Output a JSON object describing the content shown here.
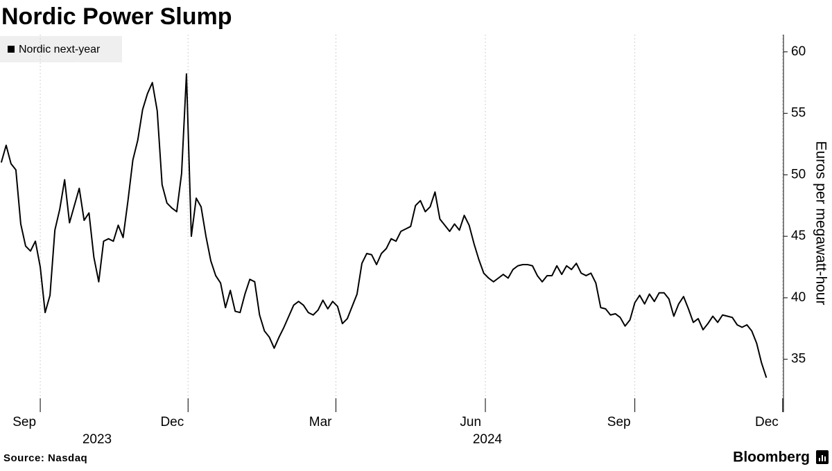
{
  "chart_data": {
    "type": "line",
    "title": "Nordic Power Slump",
    "source": "Source: Nasdaq",
    "brand": "Bloomberg",
    "y_axis_label": "Euros per megawatt-hour",
    "year_labels": [
      "2023",
      "2024"
    ],
    "series": [
      {
        "name": "Nordic next-year",
        "color": "#000000",
        "values": [
          51.0,
          52.4,
          50.9,
          50.4,
          46.0,
          44.2,
          43.8,
          44.6,
          42.5,
          38.8,
          40.2,
          45.5,
          47.2,
          49.6,
          46.1,
          47.5,
          48.9,
          46.3,
          46.9,
          43.3,
          41.3,
          44.6,
          44.8,
          44.6,
          45.9,
          44.9,
          47.9,
          51.2,
          52.8,
          55.3,
          56.6,
          57.5,
          55.2,
          49.2,
          47.7,
          47.3,
          47.0,
          50.1,
          58.2,
          45.0,
          48.1,
          47.4,
          45.0,
          43.0,
          41.8,
          41.2,
          39.2,
          40.6,
          38.9,
          38.8,
          40.3,
          41.5,
          41.3,
          38.6,
          37.3,
          36.8,
          35.9,
          36.8,
          37.6,
          38.5,
          39.4,
          39.7,
          39.4,
          38.8,
          38.6,
          39.0,
          39.8,
          39.1,
          39.7,
          39.3,
          37.9,
          38.3,
          39.3,
          40.3,
          42.8,
          43.6,
          43.5,
          42.7,
          43.6,
          44.0,
          44.8,
          44.6,
          45.4,
          45.6,
          45.8,
          47.5,
          47.9,
          47.0,
          47.4,
          48.6,
          46.4,
          45.9,
          45.4,
          46.0,
          45.5,
          46.7,
          45.9,
          44.4,
          43.1,
          42.0,
          41.6,
          41.3,
          41.6,
          41.9,
          41.6,
          42.3,
          42.6,
          42.7,
          42.7,
          42.6,
          41.8,
          41.3,
          41.8,
          41.8,
          42.6,
          41.9,
          42.6,
          42.3,
          42.8,
          42.0,
          41.8,
          42.0,
          41.2,
          39.2,
          39.1,
          38.6,
          38.7,
          38.4,
          37.7,
          38.2,
          39.6,
          40.2,
          39.5,
          40.3,
          39.7,
          40.4,
          40.4,
          39.9,
          38.5,
          39.5,
          40.1,
          39.1,
          38.0,
          38.3,
          37.4,
          37.9,
          38.5,
          38.0,
          38.6,
          38.5,
          38.4,
          37.8,
          37.6,
          37.8,
          37.3,
          36.3,
          34.7,
          33.5
        ]
      }
    ],
    "xlim": [
      -0.26,
      160.5
    ],
    "xticks": [
      {
        "value": 8,
        "label": "Sep"
      },
      {
        "value": 38.33,
        "label": "Dec"
      },
      {
        "value": 68.67,
        "label": "Mar"
      },
      {
        "value": 99.33,
        "label": "Jun"
      },
      {
        "value": 130,
        "label": "Sep"
      },
      {
        "value": 160.33,
        "label": "Dec"
      }
    ],
    "ylim": [
      30.7,
      61.4
    ],
    "yticks": [
      35,
      40,
      45,
      50,
      55,
      60
    ],
    "y_axis_side": "right",
    "grid": "x",
    "legend": "top-left"
  }
}
